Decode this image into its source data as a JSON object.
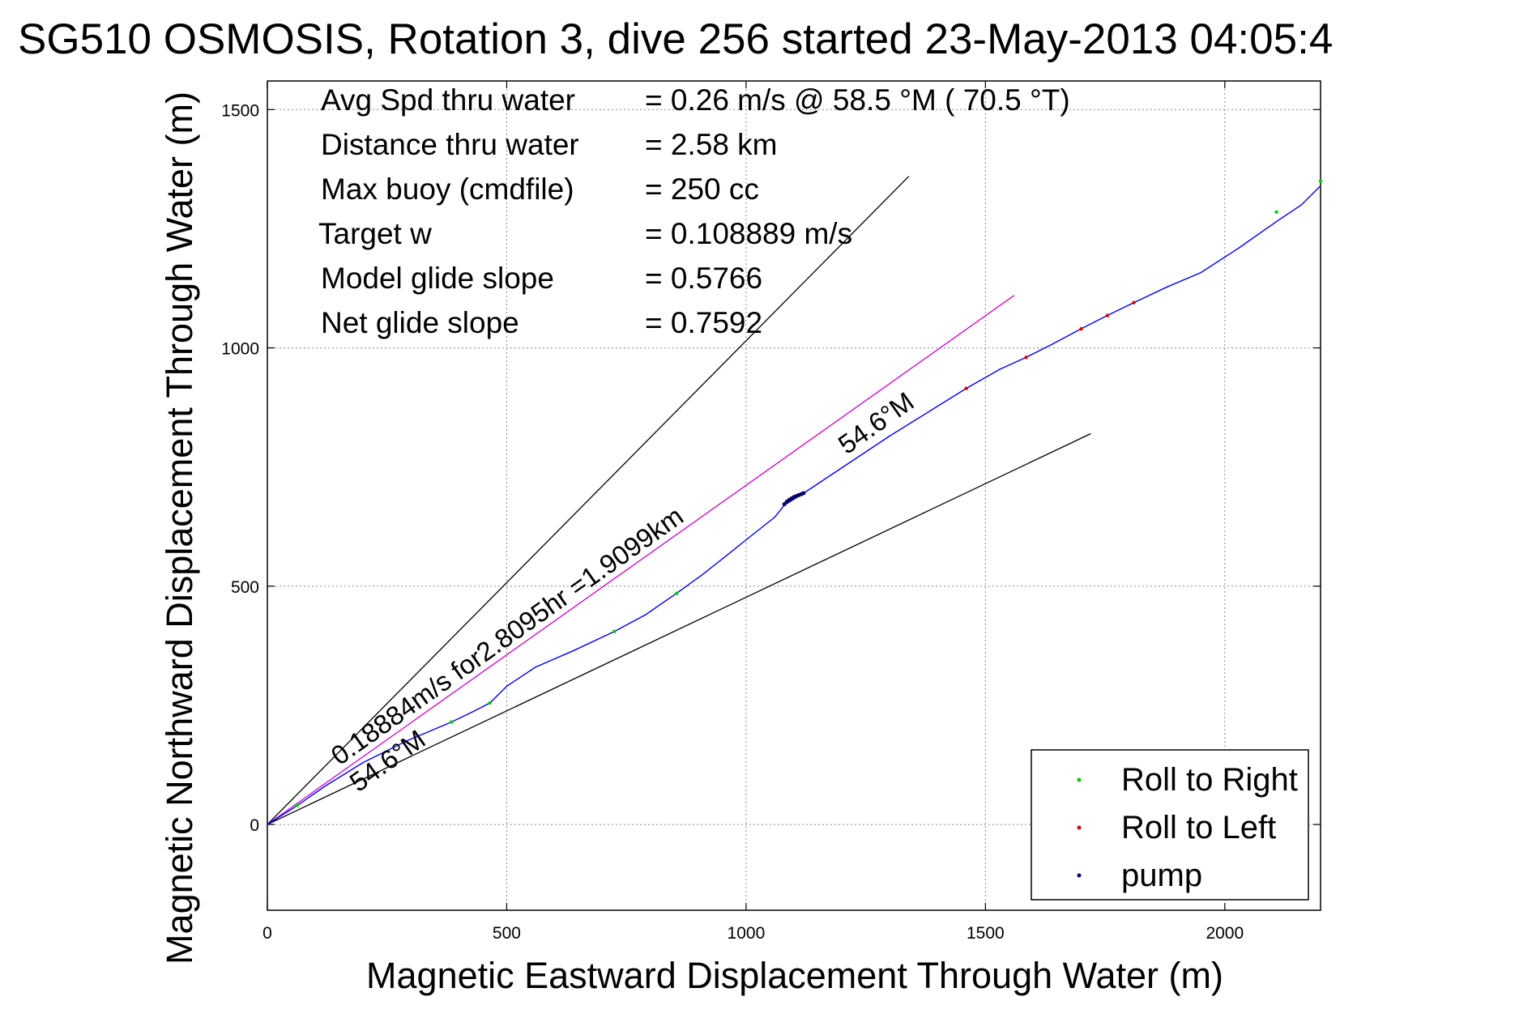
{
  "chart_data": {
    "type": "line",
    "title": "SG510 OSMOSIS, Rotation 3, dive 256 started 23-May-2013 04:05:4",
    "xlabel": "Magnetic Eastward Displacement Through Water (m)",
    "ylabel": "Magnetic Northward Displacement Through Water (m)",
    "xlim": [
      0,
      2200
    ],
    "ylim": [
      -180,
      1560
    ],
    "xticks": [
      0,
      500,
      1000,
      1500,
      2000
    ],
    "yticks": [
      0,
      500,
      1000,
      1500
    ],
    "grid": true,
    "legend_position": "bottom-right",
    "stats": [
      {
        "label": "Avg Spd thru water",
        "value": "=  0.26 m/s @  58.5 °M ( 70.5 °T)"
      },
      {
        "label": "Distance thru water",
        "value": "=  2.58 km"
      },
      {
        "label": "Max buoy (cmdfile)",
        "value": "= 250 cc"
      },
      {
        "label": "Target w",
        "value": "= 0.108889 m/s"
      },
      {
        "label": "Model glide slope",
        "value": "= 0.5766"
      },
      {
        "label": "Net glide slope",
        "value": "= 0.7592"
      }
    ],
    "annotations": {
      "track_label": "0.18884m/s for2.8095hr =1.9099km",
      "heading_label_upper": "54.6°M",
      "heading_label_lower": "54.6°M"
    },
    "series": [
      {
        "name": "Roll to Right",
        "marker": "dot",
        "color": "#00cc00",
        "x": [
          62,
          385,
          465,
          725,
          855,
          2108,
          2200
        ],
        "y": [
          40,
          215,
          255,
          405,
          485,
          1285,
          1350
        ]
      },
      {
        "name": "Roll to Left",
        "marker": "dot",
        "color": "#dd0000",
        "x": [
          1460,
          1585,
          1700,
          1755,
          1810
        ],
        "y": [
          915,
          980,
          1040,
          1068,
          1095
        ]
      },
      {
        "name": "pump",
        "marker": "dot",
        "color": "#000066",
        "x": [
          1080,
          1085,
          1090,
          1095,
          1100,
          1105,
          1110,
          1115,
          1120
        ],
        "y": [
          672,
          677,
          681,
          684,
          687,
          689,
          691,
          693,
          695
        ]
      }
    ],
    "lines": {
      "track": {
        "color": "#0000ff",
        "x": [
          0,
          60,
          120,
          200,
          290,
          385,
          430,
          465,
          500,
          560,
          640,
          725,
          790,
          855,
          910,
          960,
          1010,
          1060,
          1080,
          1120,
          1180,
          1240,
          1300,
          1380,
          1460,
          1530,
          1585,
          1640,
          1700,
          1755,
          1810,
          1880,
          1950,
          2030,
          2108,
          2160,
          2200
        ],
        "y": [
          0,
          38,
          80,
          130,
          175,
          215,
          237,
          255,
          290,
          330,
          365,
          405,
          440,
          485,
          525,
          565,
          605,
          645,
          670,
          695,
          735,
          775,
          815,
          865,
          915,
          955,
          980,
          1008,
          1040,
          1068,
          1095,
          1128,
          1158,
          1210,
          1265,
          1300,
          1340
        ]
      },
      "depth_averaged": {
        "color": "#cc00cc",
        "x": [
          0,
          1560
        ],
        "y": [
          0,
          1110
        ]
      },
      "heading_bound_upper": {
        "color": "#000000",
        "x": [
          0,
          1340
        ],
        "y": [
          0,
          1360
        ]
      },
      "heading_bound_lower": {
        "color": "#000000",
        "x": [
          0,
          1720
        ],
        "y": [
          0,
          820
        ]
      }
    }
  }
}
